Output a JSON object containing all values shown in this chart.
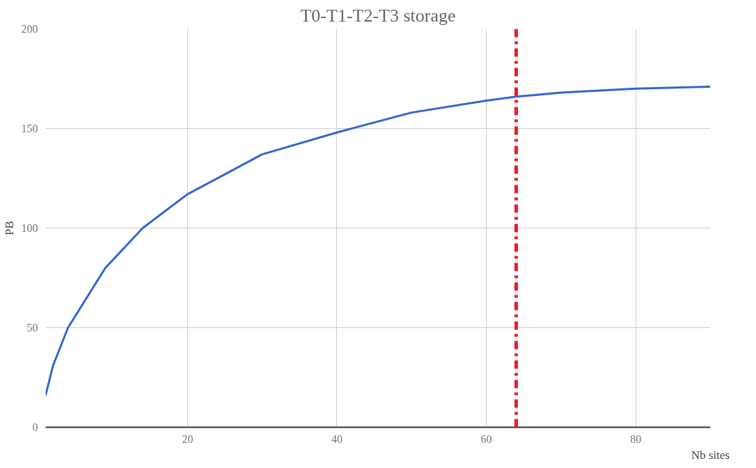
{
  "chart_data": {
    "type": "line",
    "title": "T0-T1-T2-T3 storage",
    "xlabel": "Nb sites",
    "ylabel": "PB",
    "xlim": [
      1,
      90
    ],
    "xticks": [
      20,
      40,
      60,
      80
    ],
    "ylim": [
      0,
      200
    ],
    "yticks": [
      0,
      50,
      100,
      150,
      200
    ],
    "grid": true,
    "series": [
      {
        "color": "#3366cc",
        "x": [
          1,
          2,
          4,
          9,
          14,
          20,
          30,
          40,
          50,
          60,
          64,
          70,
          80,
          90
        ],
        "values": [
          16,
          31,
          50,
          80,
          100,
          117,
          137,
          148,
          158,
          164,
          166,
          168,
          170,
          171
        ]
      }
    ],
    "ref_lines": [
      {
        "axis": "x",
        "value": 64,
        "color": "#ee1c25",
        "line_style": "dashdot"
      }
    ]
  }
}
